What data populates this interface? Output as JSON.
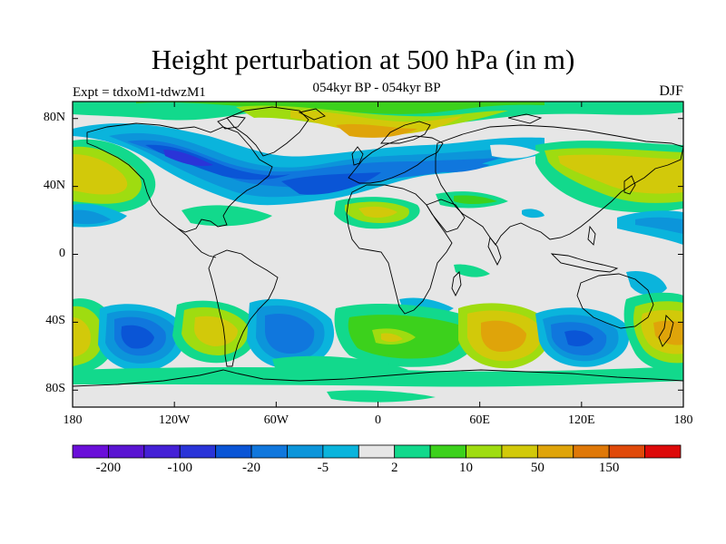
{
  "header": {
    "title": "Height perturbation at 500 hPa (in m)",
    "subtitle": "054kyr BP - 054kyr BP",
    "left_label": "Expt = tdxoM1-tdwzM1",
    "right_label": "DJF"
  },
  "map": {
    "projection": "equirectangular",
    "lon_range": [
      -180,
      180
    ],
    "lat_range": [
      -90,
      90
    ],
    "y_ticks": [
      "80N",
      "40N",
      "0",
      "40S",
      "80S"
    ],
    "x_ticks": [
      "180",
      "120W",
      "60W",
      "0",
      "60E",
      "120E",
      "180"
    ],
    "background_color": "#e6e6e6",
    "coastline_color": "#000000"
  },
  "colorbar": {
    "colors": [
      "#6a0fd9",
      "#5a14d2",
      "#4420d6",
      "#2a34d8",
      "#0a55d6",
      "#1077dd",
      "#0c95da",
      "#0ab4dc",
      "#e6e6e6",
      "#12d98c",
      "#3cd11c",
      "#9fdc10",
      "#d2c90a",
      "#dfa40a",
      "#df7808",
      "#e04a0a",
      "#dd0a0a"
    ],
    "labels": [
      "-200",
      "-100",
      "-20",
      "-5",
      "2",
      "10",
      "50",
      "150"
    ]
  }
}
